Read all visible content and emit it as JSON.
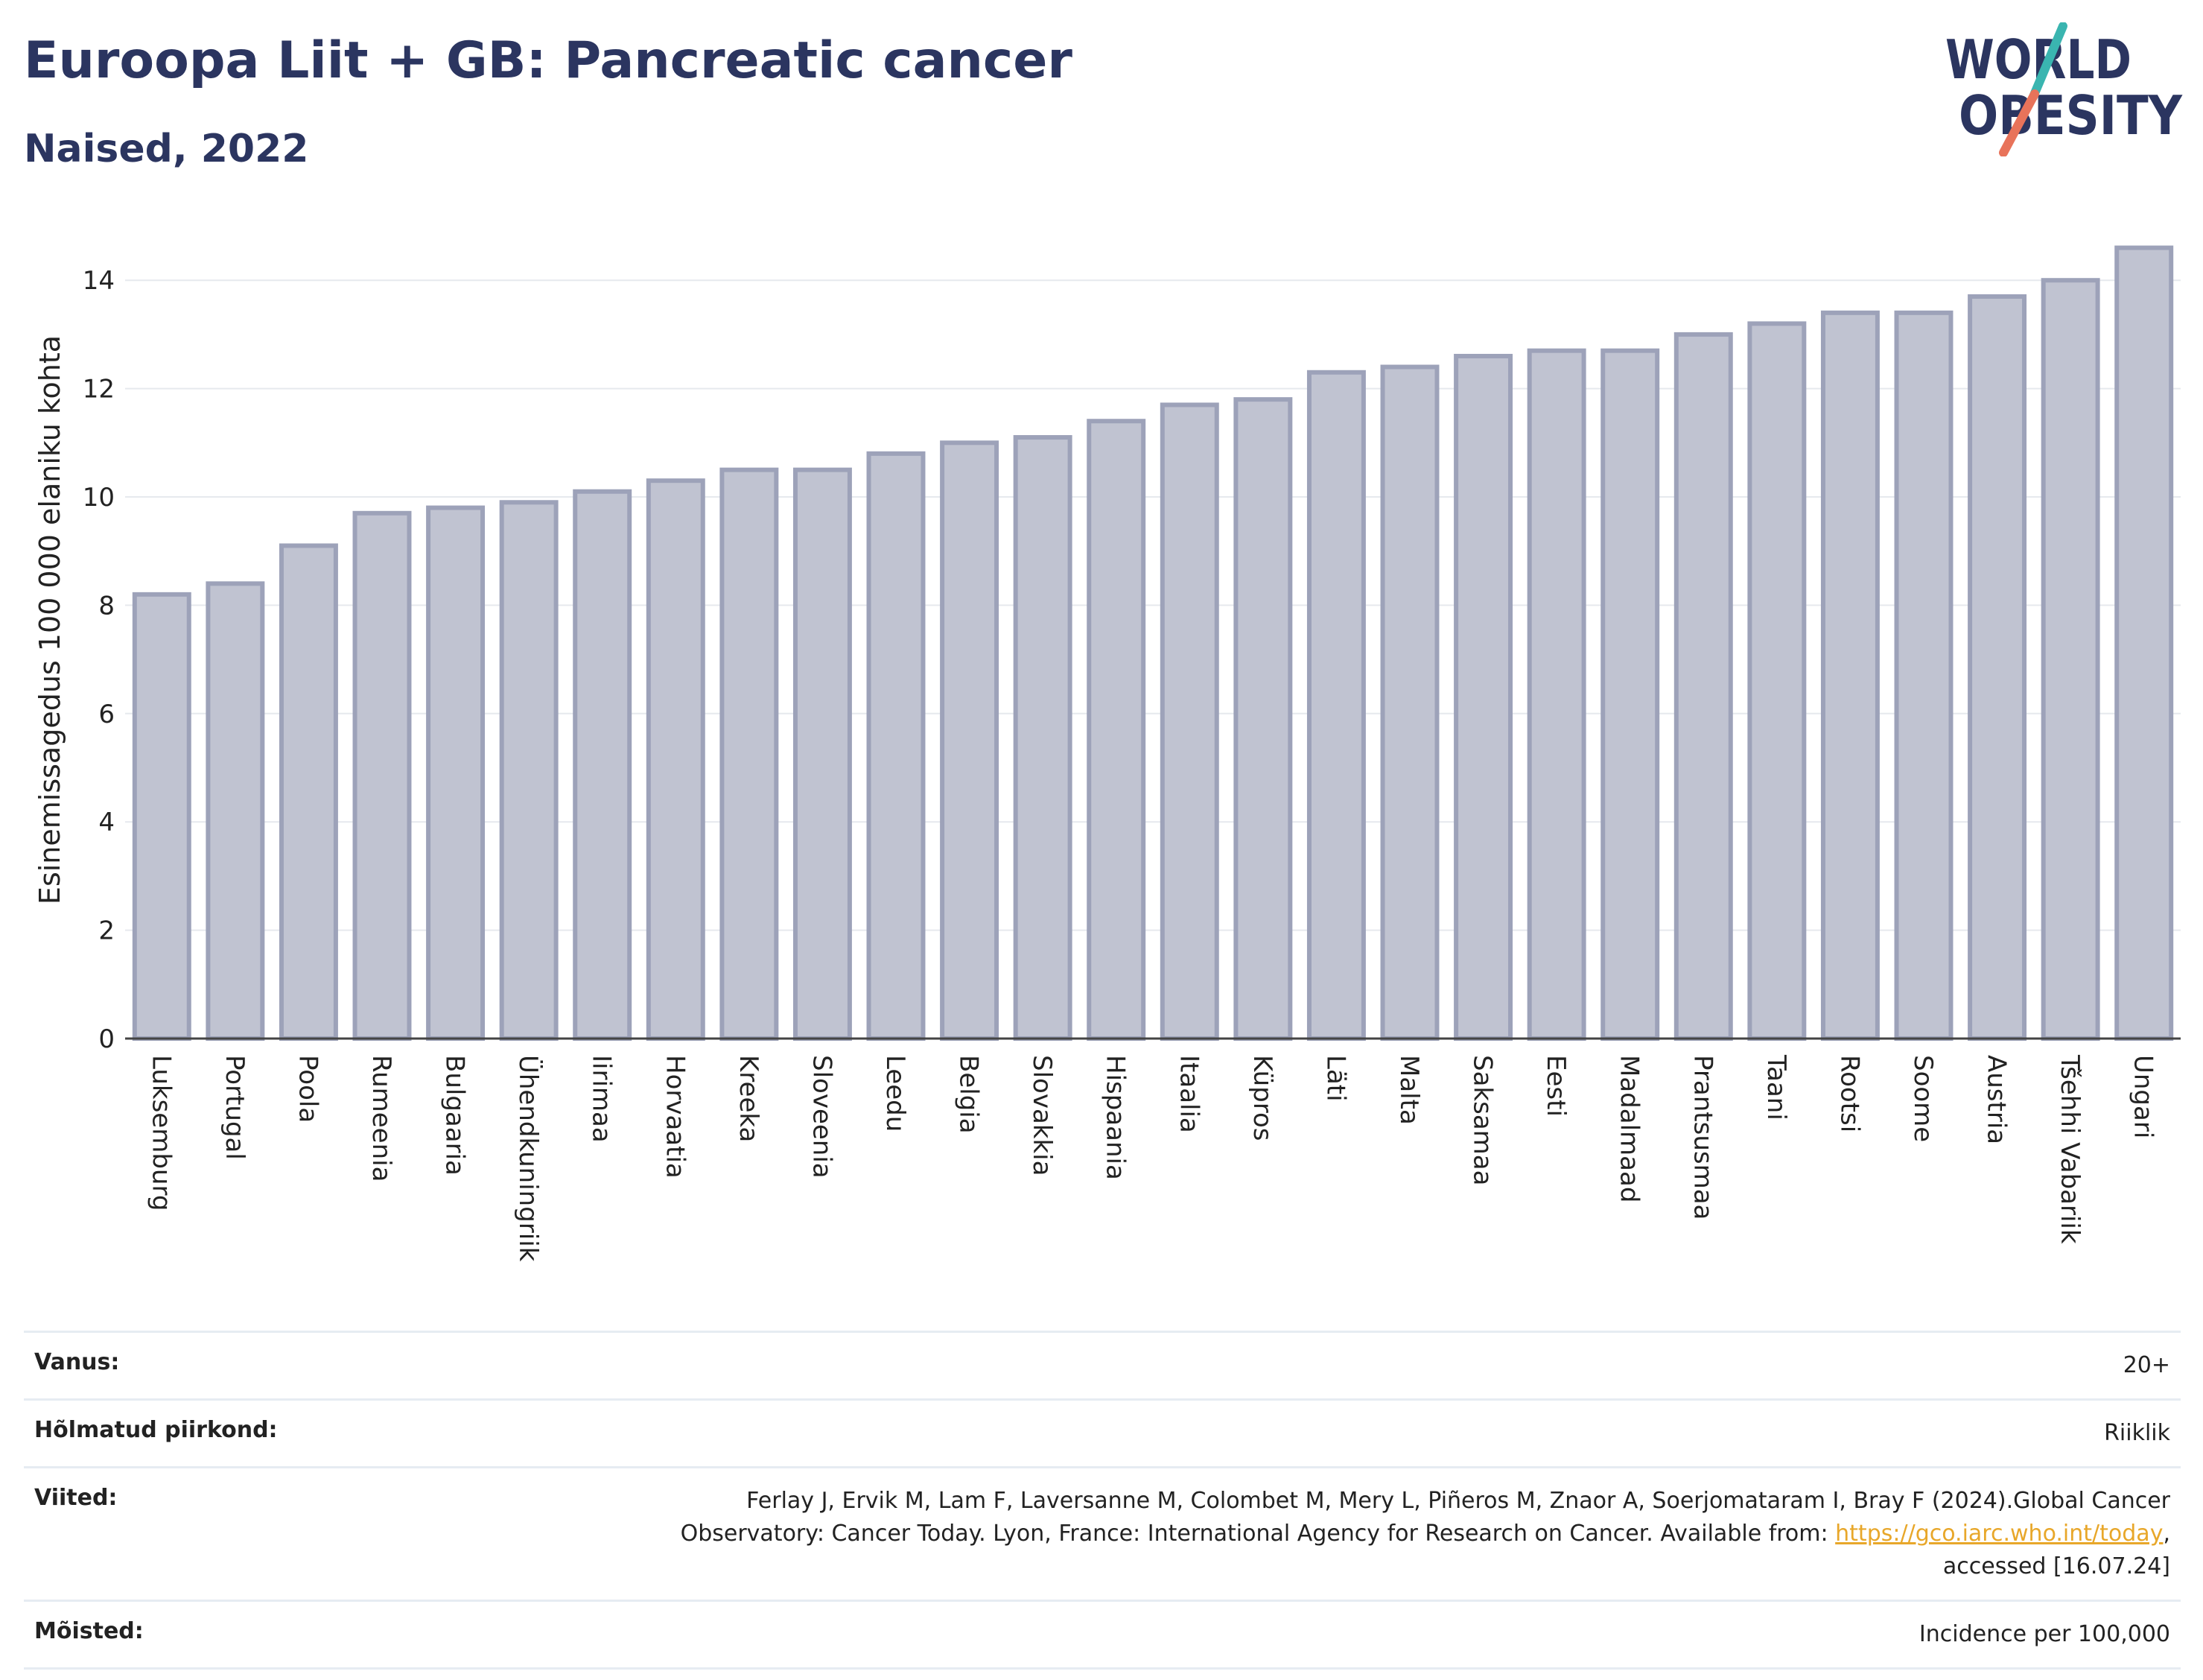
{
  "header": {
    "title": "Euroopa Liit + GB: Pancreatic cancer",
    "subtitle": "Naised, 2022"
  },
  "logo": {
    "line1": "WORLD",
    "line2": "OBESITY",
    "colors": {
      "text": "#2b3560",
      "slash_top": "#3ab5b0",
      "slash_bottom": "#e8735a"
    }
  },
  "chart_data": {
    "type": "bar",
    "ylabel": "Esinemissagedus 100 000 elaniku kohta",
    "xlabel": "",
    "ylim": [
      0,
      15
    ],
    "yticks": [
      0,
      2,
      4,
      6,
      8,
      10,
      12,
      14
    ],
    "grid": true,
    "bar_color": "#c0c3d1",
    "bar_edge_color": "#9da2b9",
    "categories": [
      "Luksemburg",
      "Portugal",
      "Poola",
      "Rumeenia",
      "Bulgaaria",
      "Ühendkuningriik",
      "Iirimaa",
      "Horvaatia",
      "Kreeka",
      "Sloveenia",
      "Leedu",
      "Belgia",
      "Slovakkia",
      "Hispaania",
      "Itaalia",
      "Küpros",
      "Läti",
      "Malta",
      "Saksamaa",
      "Eesti",
      "Madalmaad",
      "Prantsusmaa",
      "Taani",
      "Rootsi",
      "Soome",
      "Austria",
      "Tšehhi Vabariik",
      "Ungari"
    ],
    "values": [
      8.2,
      8.4,
      9.1,
      9.7,
      9.8,
      9.9,
      10.1,
      10.3,
      10.5,
      10.5,
      10.8,
      11.0,
      11.1,
      11.4,
      11.7,
      11.8,
      12.3,
      12.4,
      12.6,
      12.7,
      12.7,
      13.0,
      13.2,
      13.4,
      13.4,
      13.7,
      14.0,
      14.6
    ]
  },
  "meta": {
    "age_label": "Vanus:",
    "age_value": "20+",
    "area_label": "Hõlmatud piirkond:",
    "area_value": "Riiklik",
    "refs_label": "Viited:",
    "refs_line1": "Ferlay J, Ervik M, Lam F, Laversanne M, Colombet M, Mery L, Piñeros M, Znaor A, Soerjomataram I, Bray F (2024).Global Cancer",
    "refs_line2": "Observatory: Cancer Today. Lyon, France: International Agency for Research on Cancer. Available from: ",
    "refs_link": "https://gco.iarc.who.int/today",
    "refs_after_link": ",",
    "refs_line3": "accessed [16.07.24]",
    "defs_label": "Mõisted:",
    "defs_value": "Incidence per 100,000"
  }
}
